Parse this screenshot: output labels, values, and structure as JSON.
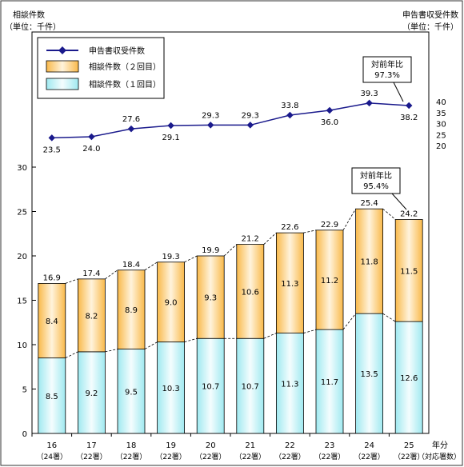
{
  "labels": {
    "left_unit_title": "相談件数",
    "left_unit": "（単位：千件）",
    "right_unit_title": "申告書収受件数",
    "right_unit": "（単位：千件）",
    "x_axis_suffix": "年分",
    "x_axis_note": "（対応署数）",
    "callout_top_title": "対前年比",
    "callout_top_value": "97.3%",
    "callout_bottom_title": "対前年比",
    "callout_bottom_value": "95.4%"
  },
  "legend": [
    {
      "label": "申告書収受件数",
      "color": "#1a1a8c"
    },
    {
      "label": "相談件数（２回目）",
      "color": "#f6c77a"
    },
    {
      "label": "相談件数（１回目）",
      "color": "#c8f3f6"
    }
  ],
  "chart_data": {
    "type": "bar",
    "stacked": true,
    "categories": [
      "16",
      "17",
      "18",
      "19",
      "20",
      "21",
      "22",
      "23",
      "24",
      "25"
    ],
    "category_notes": [
      "（24署）",
      "（22署）",
      "（22署）",
      "（22署）",
      "（22署）",
      "（22署）",
      "（22署）",
      "（22署）",
      "（22署）",
      "（22署）"
    ],
    "series": [
      {
        "name": "相談件数（１回目）",
        "values": [
          8.5,
          9.2,
          9.5,
          10.3,
          10.7,
          10.7,
          11.3,
          11.7,
          13.5,
          12.6
        ],
        "labels": [
          "8.5",
          "9.2",
          "9.5",
          "10.3",
          "10.7",
          "10.7",
          "11.3",
          "11.7",
          "13.5",
          "12.6"
        ]
      },
      {
        "name": "相談件数（２回目）",
        "values": [
          8.4,
          8.2,
          8.9,
          9.0,
          9.3,
          10.6,
          11.3,
          11.2,
          11.8,
          11.5
        ],
        "labels": [
          "8.4",
          "8.2",
          "8.9",
          "9.0",
          "9.3",
          "10.6",
          "11.3",
          "11.2",
          "11.8",
          "11.5"
        ]
      }
    ],
    "totals": [
      "16.9",
      "17.4",
      "18.4",
      "19.3",
      "19.9",
      "21.2",
      "22.6",
      "22.9",
      "25.4",
      "24.2"
    ],
    "y_left": {
      "min": 0,
      "max": 30,
      "ticks": [
        "0",
        "5",
        "10",
        "15",
        "20",
        "25",
        "30"
      ]
    },
    "line": {
      "name": "申告書収受件数",
      "values": [
        23.5,
        24.0,
        27.6,
        29.1,
        29.3,
        29.3,
        33.8,
        36.0,
        39.3,
        38.2
      ],
      "labels": [
        "23.5",
        "24.0",
        "27.6",
        "29.1",
        "29.3",
        "29.3",
        "33.8",
        "36.0",
        "39.3",
        "38.2"
      ],
      "label_pos": [
        "below",
        "below",
        "above",
        "below",
        "above",
        "above",
        "above",
        "below",
        "above",
        "below"
      ],
      "y_right": {
        "min": 20,
        "max": 40,
        "ticks": [
          "20",
          "25",
          "30",
          "35",
          "40"
        ]
      }
    }
  }
}
